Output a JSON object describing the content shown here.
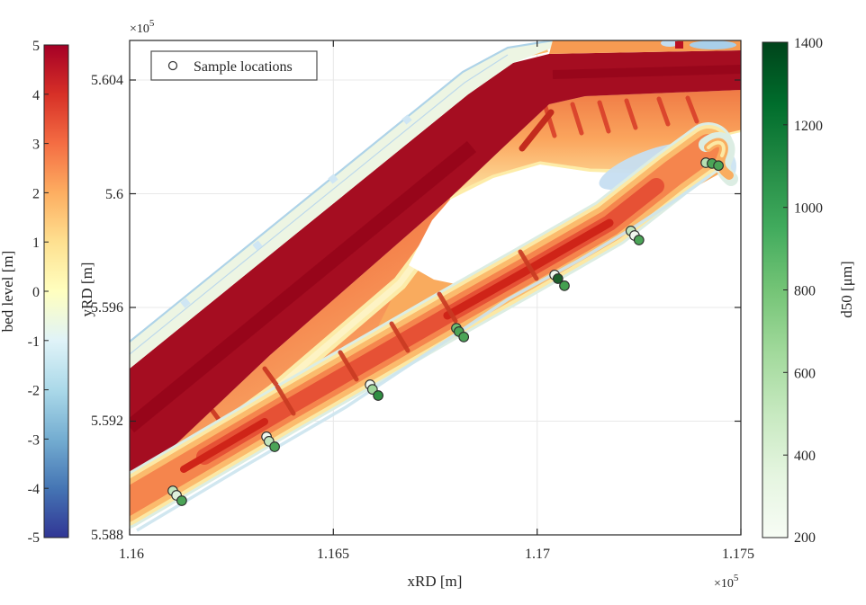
{
  "figure": {
    "legend": {
      "marker": "open-circle",
      "label": "Sample locations"
    },
    "x_axis": {
      "label": "xRD [m]",
      "ticks": [
        "1.16",
        "1.165",
        "1.17",
        "1.175"
      ],
      "multiplier_base": "×10",
      "multiplier_exp": "5"
    },
    "y_axis": {
      "label": "yRD [m]",
      "ticks": [
        "5.588",
        "5.592",
        "5.596",
        "5.6",
        "5.604"
      ],
      "multiplier_base": "×10",
      "multiplier_exp": "5"
    },
    "colorbar_bed_level": {
      "label": "bed level [m]",
      "ticks": [
        "5",
        "4",
        "3",
        "2",
        "1",
        "0",
        "-1",
        "-2",
        "-3",
        "-4",
        "-5"
      ],
      "colormap": [
        "#a50026",
        "#d73027",
        "#f46d43",
        "#fdae61",
        "#fee090",
        "#ffffbf",
        "#e0f3f8",
        "#abd9e9",
        "#74add1",
        "#4575b4",
        "#313695"
      ]
    },
    "colorbar_d50": {
      "label": "d50 [μm]",
      "ticks": [
        "1400",
        "1200",
        "1000",
        "800",
        "600",
        "400",
        "200"
      ],
      "colormap": [
        "#00441b",
        "#006d2c",
        "#238b45",
        "#41ab5d",
        "#74c476",
        "#a1d99b",
        "#c7e9c0",
        "#e5f5e0",
        "#f7fcf5"
      ]
    }
  },
  "chart_data": {
    "type": "heatmap+scatter",
    "title": "",
    "xlabel": "xRD [m]",
    "ylabel": "yRD [m]",
    "x_range": [
      116000,
      117500
    ],
    "y_range": [
      558800,
      560539
    ],
    "bed_level_range_m": [
      -5,
      5
    ],
    "d50_range_um": [
      200,
      1400
    ],
    "grid": true,
    "legend_position": "top-left-inside",
    "description": "Bed level map (RdYlBu colormap, red=high/dry, blue=deep) of a dike with sandy foreshore nourishment and an elongated sandbar; sediment sample locations drawn as circles colored by d50 (Greens colormap).",
    "samples": [
      {
        "x": 116106,
        "y": 558955,
        "d50_um": 420,
        "color": "#c0e3bb"
      },
      {
        "x": 116115,
        "y": 558939,
        "d50_um": 330,
        "color": "#dff0dc"
      },
      {
        "x": 116128,
        "y": 558920,
        "d50_um": 820,
        "color": "#4ba457"
      },
      {
        "x": 116336,
        "y": 559145,
        "d50_um": 260,
        "color": "#f0f7ee"
      },
      {
        "x": 116342,
        "y": 559129,
        "d50_um": 420,
        "color": "#c0e3bb"
      },
      {
        "x": 116356,
        "y": 559110,
        "d50_um": 820,
        "color": "#4ba457"
      },
      {
        "x": 116590,
        "y": 559328,
        "d50_um": 260,
        "color": "#f0f7ee"
      },
      {
        "x": 116596,
        "y": 559312,
        "d50_um": 540,
        "color": "#9ed69a"
      },
      {
        "x": 116610,
        "y": 559290,
        "d50_um": 960,
        "color": "#2f8f42"
      },
      {
        "x": 116802,
        "y": 559527,
        "d50_um": 700,
        "color": "#6fbe74"
      },
      {
        "x": 116808,
        "y": 559515,
        "d50_um": 820,
        "color": "#4ba457"
      },
      {
        "x": 116820,
        "y": 559496,
        "d50_um": 820,
        "color": "#4ba457"
      },
      {
        "x": 117043,
        "y": 559714,
        "d50_um": 260,
        "color": "#f0f7ee"
      },
      {
        "x": 117051,
        "y": 559701,
        "d50_um": 1270,
        "color": "#1d5f2c"
      },
      {
        "x": 117067,
        "y": 559676,
        "d50_um": 850,
        "color": "#44a050"
      },
      {
        "x": 117230,
        "y": 559869,
        "d50_um": 420,
        "color": "#c0e3bb"
      },
      {
        "x": 117239,
        "y": 559853,
        "d50_um": 260,
        "color": "#f0f7ee"
      },
      {
        "x": 117250,
        "y": 559837,
        "d50_um": 820,
        "color": "#4ba457"
      },
      {
        "x": 117414,
        "y": 560109,
        "d50_um": 430,
        "color": "#b7e0b2"
      },
      {
        "x": 117429,
        "y": 560106,
        "d50_um": 820,
        "color": "#4ba457"
      },
      {
        "x": 117445,
        "y": 560099,
        "d50_um": 820,
        "color": "#4ba457"
      }
    ]
  }
}
